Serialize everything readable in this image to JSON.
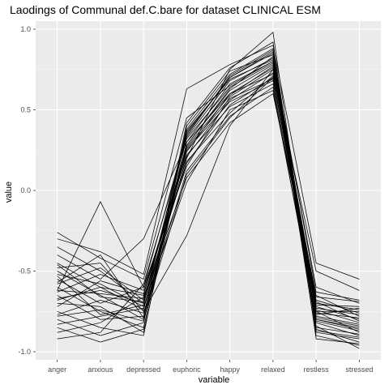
{
  "chart_data": {
    "type": "line",
    "title": "Laodings of Communal def.C.bare for dataset CLINICAL ESM",
    "xlabel": "variable",
    "ylabel": "value",
    "categories": [
      "anger",
      "anxious",
      "depressed",
      "euphoric",
      "happy",
      "relaxed",
      "restless",
      "stressed"
    ],
    "ylim": [
      -1.05,
      1.05
    ],
    "yticks": [
      -1.0,
      -0.5,
      0.0,
      0.5,
      1.0
    ],
    "ytick_labels": [
      "-1.0",
      "-0.5",
      "0.0",
      "0.5",
      "1.0"
    ],
    "grid": true,
    "legend": "none",
    "colors": {
      "panel": "#ebebeb",
      "line": "#000000",
      "grid": "#ffffff"
    },
    "series": [
      {
        "values": [
          -0.62,
          -0.07,
          -0.6,
          0.35,
          0.7,
          0.85,
          -0.75,
          -0.88
        ]
      },
      {
        "values": [
          -0.26,
          -0.42,
          -0.55,
          0.45,
          0.65,
          0.8,
          -0.6,
          -0.7
        ]
      },
      {
        "values": [
          -0.3,
          -0.38,
          -0.52,
          0.63,
          0.78,
          0.9,
          -0.45,
          -0.55
        ]
      },
      {
        "values": [
          -0.35,
          -0.5,
          -0.7,
          0.2,
          0.75,
          0.98,
          -0.88,
          -0.92
        ]
      },
      {
        "values": [
          -0.4,
          -0.55,
          -0.3,
          0.3,
          0.6,
          0.72,
          -0.5,
          -0.62
        ]
      },
      {
        "values": [
          -0.45,
          -0.6,
          -0.65,
          0.25,
          0.55,
          0.68,
          -0.65,
          -0.78
        ]
      },
      {
        "values": [
          -0.48,
          -0.45,
          -0.75,
          -0.28,
          0.4,
          0.75,
          -0.7,
          -0.74
        ]
      },
      {
        "values": [
          -0.5,
          -0.65,
          -0.8,
          0.1,
          0.45,
          0.7,
          -0.72,
          -0.8
        ]
      },
      {
        "values": [
          -0.52,
          -0.58,
          -0.72,
          0.05,
          0.5,
          0.62,
          -0.78,
          -0.83
        ]
      },
      {
        "values": [
          -0.55,
          -0.7,
          -0.6,
          0.15,
          0.58,
          0.75,
          -0.8,
          -0.86
        ]
      },
      {
        "values": [
          -0.58,
          -0.48,
          -0.68,
          0.28,
          0.62,
          0.78,
          -0.68,
          -0.76
        ]
      },
      {
        "values": [
          -0.6,
          -0.75,
          -0.85,
          0.33,
          0.68,
          0.82,
          -0.82,
          -0.9
        ]
      },
      {
        "values": [
          -0.63,
          -0.52,
          -0.62,
          0.22,
          0.52,
          0.66,
          -0.74,
          -0.82
        ]
      },
      {
        "values": [
          -0.65,
          -0.8,
          -0.78,
          0.38,
          0.72,
          0.88,
          -0.86,
          -0.94
        ]
      },
      {
        "values": [
          -0.67,
          -0.62,
          -0.7,
          0.18,
          0.48,
          0.71,
          -0.76,
          -0.79
        ]
      },
      {
        "values": [
          -0.7,
          -0.72,
          -0.88,
          0.3,
          0.66,
          0.8,
          -0.9,
          -0.96
        ]
      },
      {
        "values": [
          -0.72,
          -0.56,
          -0.64,
          0.26,
          0.57,
          0.69,
          -0.71,
          -0.72
        ]
      },
      {
        "values": [
          -0.75,
          -0.85,
          -0.9,
          0.4,
          0.74,
          0.84,
          -0.84,
          -0.98
        ]
      },
      {
        "values": [
          -0.77,
          -0.68,
          -0.76,
          0.12,
          0.46,
          0.64,
          -0.79,
          -0.84
        ]
      },
      {
        "values": [
          -0.8,
          -0.9,
          -0.82,
          0.36,
          0.7,
          0.86,
          -0.87,
          -0.91
        ]
      },
      {
        "values": [
          -0.83,
          -0.78,
          -0.73,
          0.24,
          0.6,
          0.76,
          -0.73,
          -0.77
        ]
      },
      {
        "values": [
          -0.85,
          -0.94,
          -0.86,
          0.42,
          0.76,
          0.92,
          -0.92,
          -0.95
        ]
      },
      {
        "values": [
          -0.88,
          -0.82,
          -0.66,
          0.08,
          0.42,
          0.6,
          -0.66,
          -0.69
        ]
      },
      {
        "values": [
          -0.92,
          -0.88,
          -0.58,
          0.32,
          0.64,
          0.79,
          -0.81,
          -0.87
        ]
      },
      {
        "values": [
          -0.57,
          -0.4,
          -0.79,
          0.28,
          0.63,
          0.83,
          -0.63,
          -0.68
        ]
      },
      {
        "values": [
          -0.46,
          -0.66,
          -0.69,
          0.34,
          0.71,
          0.87,
          -0.77,
          -0.73
        ]
      },
      {
        "values": [
          -0.68,
          -0.6,
          -0.74,
          0.21,
          0.56,
          0.73,
          -0.69,
          -0.81
        ]
      },
      {
        "values": [
          -0.78,
          -0.74,
          -0.81,
          0.27,
          0.59,
          0.77,
          -0.85,
          -0.89
        ]
      },
      {
        "values": [
          -0.62,
          -0.64,
          -0.67,
          0.17,
          0.53,
          0.7,
          -0.75,
          -0.75
        ]
      },
      {
        "values": [
          -0.53,
          -0.77,
          -0.71,
          0.37,
          0.69,
          0.81,
          -0.8,
          -0.85
        ]
      }
    ]
  }
}
